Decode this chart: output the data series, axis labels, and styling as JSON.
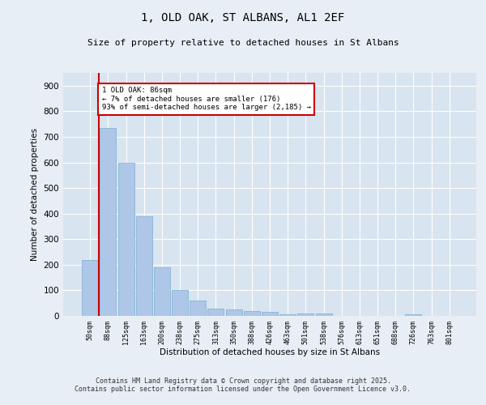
{
  "title_line1": "1, OLD OAK, ST ALBANS, AL1 2EF",
  "title_line2": "Size of property relative to detached houses in St Albans",
  "xlabel": "Distribution of detached houses by size in St Albans",
  "ylabel": "Number of detached properties",
  "categories": [
    "50sqm",
    "88sqm",
    "125sqm",
    "163sqm",
    "200sqm",
    "238sqm",
    "275sqm",
    "313sqm",
    "350sqm",
    "388sqm",
    "426sqm",
    "463sqm",
    "501sqm",
    "538sqm",
    "576sqm",
    "613sqm",
    "651sqm",
    "688sqm",
    "726sqm",
    "763sqm",
    "801sqm"
  ],
  "values": [
    220,
    735,
    600,
    390,
    190,
    100,
    60,
    30,
    25,
    20,
    15,
    5,
    10,
    10,
    0,
    0,
    0,
    0,
    5,
    0,
    0
  ],
  "bar_color": "#aec6e8",
  "bar_edge_color": "#7aaed0",
  "property_line_index": 1,
  "property_line_color": "#cc0000",
  "annotation_text": "1 OLD OAK: 86sqm\n← 7% of detached houses are smaller (176)\n93% of semi-detached houses are larger (2,185) →",
  "annotation_box_color": "#cc0000",
  "ylim": [
    0,
    950
  ],
  "yticks": [
    0,
    100,
    200,
    300,
    400,
    500,
    600,
    700,
    800,
    900
  ],
  "footnote1": "Contains HM Land Registry data © Crown copyright and database right 2025.",
  "footnote2": "Contains public sector information licensed under the Open Government Licence v3.0.",
  "background_color": "#e8eef5",
  "plot_background_color": "#d8e4f0"
}
